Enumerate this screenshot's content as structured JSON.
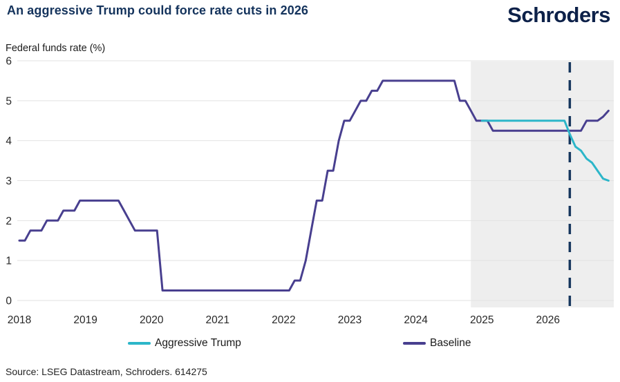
{
  "header": {
    "title": "An aggressive Trump could force rate cuts in 2026",
    "logo": "Schroders"
  },
  "colors": {
    "title_navy": "#14335C",
    "logo_navy": "#0D2149",
    "aggressive_trump_teal": "#2CB6C9",
    "baseline_purple": "#483F8F",
    "forecast_shade": "#EEEEEE",
    "divider_navy": "#17375E",
    "gridline": "#E2E2E2",
    "tick_text": "#262626"
  },
  "chart_data": {
    "type": "line",
    "title": "An aggressive Trump could force rate cuts in 2026",
    "ylabel": "Federal funds rate (%)",
    "xlabel": "",
    "ylim": [
      0,
      6
    ],
    "xlim": [
      2018.0,
      2027.0
    ],
    "yticks": [
      0,
      1,
      2,
      3,
      4,
      5,
      6
    ],
    "xticks": [
      2018,
      2019,
      2020,
      2021,
      2022,
      2023,
      2024,
      2025,
      2026
    ],
    "grid": true,
    "legend_position": "bottom",
    "x_unit": "year (monthly points, x = year + monthIndex/12)",
    "forecast_shading_start": 2024.833,
    "dashed_divider_x": 2026.33,
    "series": [
      {
        "name": "Baseline",
        "color": "#483F8F",
        "x_start": 2018.0,
        "values": [
          1.5,
          1.5,
          1.75,
          1.75,
          1.75,
          2.0,
          2.0,
          2.0,
          2.25,
          2.25,
          2.25,
          2.5,
          2.5,
          2.5,
          2.5,
          2.5,
          2.5,
          2.5,
          2.5,
          2.25,
          2.0,
          1.75,
          1.75,
          1.75,
          1.75,
          1.75,
          0.25,
          0.25,
          0.25,
          0.25,
          0.25,
          0.25,
          0.25,
          0.25,
          0.25,
          0.25,
          0.25,
          0.25,
          0.25,
          0.25,
          0.25,
          0.25,
          0.25,
          0.25,
          0.25,
          0.25,
          0.25,
          0.25,
          0.25,
          0.25,
          0.5,
          0.5,
          1.0,
          1.75,
          2.5,
          2.5,
          3.25,
          3.25,
          4.0,
          4.5,
          4.5,
          4.75,
          5.0,
          5.0,
          5.25,
          5.25,
          5.5,
          5.5,
          5.5,
          5.5,
          5.5,
          5.5,
          5.5,
          5.5,
          5.5,
          5.5,
          5.5,
          5.5,
          5.5,
          5.5,
          5.0,
          5.0,
          4.75,
          4.5,
          4.5,
          4.5,
          4.25,
          4.25,
          4.25,
          4.25,
          4.25,
          4.25,
          4.25,
          4.25,
          4.25,
          4.25,
          4.25,
          4.25,
          4.25,
          4.25,
          4.25,
          4.25,
          4.25,
          4.5,
          4.5,
          4.5,
          4.6,
          4.75
        ]
      },
      {
        "name": "Aggressive Trump",
        "color": "#2CB6C9",
        "x_start": 2025.0,
        "values": [
          4.5,
          4.5,
          4.5,
          4.5,
          4.5,
          4.5,
          4.5,
          4.5,
          4.5,
          4.5,
          4.5,
          4.5,
          4.5,
          4.5,
          4.5,
          4.5,
          4.15,
          3.85,
          3.75,
          3.55,
          3.45,
          3.25,
          3.05,
          3.0
        ]
      }
    ]
  },
  "legend": [
    {
      "label": "Aggressive Trump",
      "color": "#2CB6C9"
    },
    {
      "label": "Baseline",
      "color": "#483F8F"
    }
  ],
  "footer": {
    "source": "Source: LSEG Datastream, Schroders. 614275"
  }
}
